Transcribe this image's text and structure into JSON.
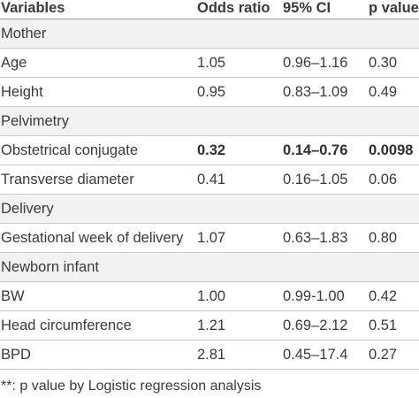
{
  "headers": [
    "Variables",
    "Odds ratio",
    "95% CI",
    "p value**"
  ],
  "rows": [
    {
      "type": "section",
      "label": "Mother"
    },
    {
      "type": "data",
      "label": "Age",
      "or": "1.05",
      "ci": "0.96–1.16",
      "p": "0.30"
    },
    {
      "type": "data",
      "label": "Height",
      "or": "0.95",
      "ci": "0.83–1.09",
      "p": "0.49"
    },
    {
      "type": "section",
      "label": "Pelvimetry"
    },
    {
      "type": "data",
      "bold": true,
      "label": "Obstetrical conjugate",
      "or": "0.32",
      "ci": "0.14–0.76",
      "p": "0.0098"
    },
    {
      "type": "data",
      "label": "Transverse diameter",
      "or": "0.41",
      "ci": "0.16–1.05",
      "p": "0.06"
    },
    {
      "type": "section",
      "label": "Delivery"
    },
    {
      "type": "data",
      "label": "Gestational week of delivery",
      "or": "1.07",
      "ci": "0.63–1.83",
      "p": "0.80"
    },
    {
      "type": "section",
      "label": "Newborn infant"
    },
    {
      "type": "data",
      "label": "BW",
      "or": "1.00",
      "ci": "0.99-1.00",
      "p": "0.42"
    },
    {
      "type": "data",
      "label": "Head circumference",
      "or": "1.21",
      "ci": "0.69–2.12",
      "p": "0.51"
    },
    {
      "type": "data",
      "label": "BPD",
      "or": "2.81",
      "ci": "0.45–17.4",
      "p": "0.27"
    }
  ],
  "footnote": "**: p value by Logistic regression analysis"
}
